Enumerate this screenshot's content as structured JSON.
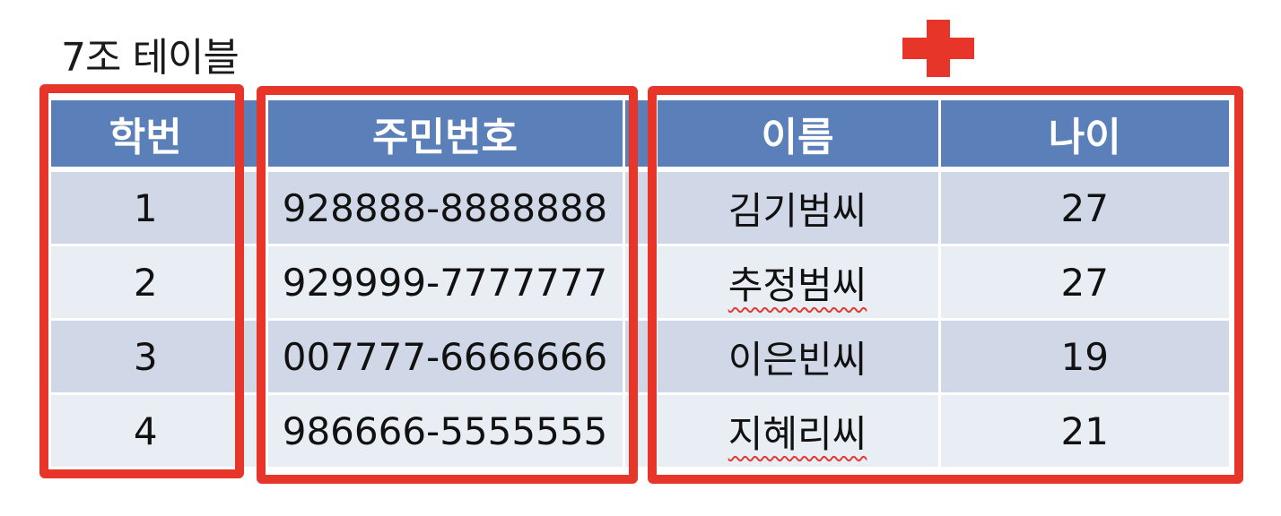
{
  "title": "7조 테이블",
  "headers": [
    "학번",
    "주민번호",
    "",
    "이름",
    "나이"
  ],
  "rows": [
    {
      "id": "1",
      "rrn": "928888-8888888",
      "name": "김기범씨",
      "age": "27"
    },
    {
      "id": "2",
      "rrn": "929999-7777777",
      "name": "추정범씨",
      "age": "27"
    },
    {
      "id": "3",
      "rrn": "007777-6666666",
      "name": "이은빈씨",
      "age": "19"
    },
    {
      "id": "4",
      "rrn": "986666-5555555",
      "name": "지혜리씨",
      "age": "21"
    }
  ],
  "colors": {
    "header_bg": "#5a7fb9",
    "row_dark": "#d0d8e8",
    "row_light": "#e9edf4",
    "highlight": "#e8352a"
  },
  "icons": {
    "plus": "plus-icon"
  }
}
